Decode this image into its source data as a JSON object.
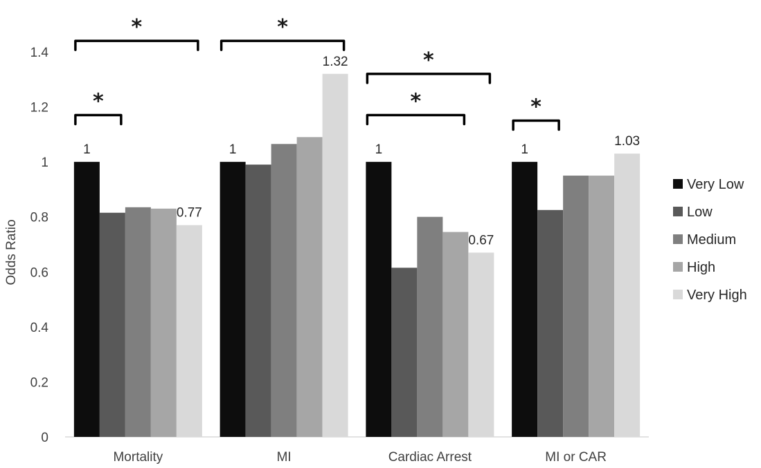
{
  "chart_data": {
    "type": "bar",
    "title": "",
    "xlabel": "",
    "ylabel": "Odds Ratio",
    "ylim": [
      0,
      1.4
    ],
    "yticks": [
      0,
      0.2,
      0.4,
      0.6,
      0.8,
      1,
      1.2,
      1.4
    ],
    "ytick_labels": [
      "0",
      "0.2",
      "0.4",
      "0.6",
      "0.8",
      "1",
      "1.2",
      "1.4"
    ],
    "grid": false,
    "legend_position": "right",
    "categories": [
      "Mortality",
      "MI",
      "Cardiac Arrest",
      "MI or CAR"
    ],
    "series": [
      {
        "name": "Very Low",
        "color": "#0d0d0d",
        "values": [
          1.0,
          1.0,
          1.0,
          1.0
        ]
      },
      {
        "name": "Low",
        "color": "#595959",
        "values": [
          0.815,
          0.99,
          0.615,
          0.825
        ]
      },
      {
        "name": "Medium",
        "color": "#7f7f7f",
        "values": [
          0.835,
          1.065,
          0.8,
          0.95
        ]
      },
      {
        "name": "High",
        "color": "#a6a6a6",
        "values": [
          0.83,
          1.09,
          0.745,
          0.95
        ]
      },
      {
        "name": "Very High",
        "color": "#d9d9d9",
        "values": [
          0.77,
          1.32,
          0.67,
          1.03
        ]
      }
    ],
    "data_labels": [
      {
        "category": 0,
        "series": 0,
        "text": "1"
      },
      {
        "category": 0,
        "series": 4,
        "text": "0.77"
      },
      {
        "category": 1,
        "series": 0,
        "text": "1"
      },
      {
        "category": 1,
        "series": 4,
        "text": "1.32"
      },
      {
        "category": 2,
        "series": 0,
        "text": "1"
      },
      {
        "category": 2,
        "series": 4,
        "text": "0.67"
      },
      {
        "category": 3,
        "series": 0,
        "text": "1"
      },
      {
        "category": 3,
        "series": 4,
        "text": "1.03"
      }
    ],
    "annotations": [
      {
        "category": 0,
        "from_series": 0,
        "to_series": 4,
        "level": 1.44,
        "text": "*"
      },
      {
        "category": 0,
        "from_series": 0,
        "to_series": 1,
        "level": 1.17,
        "text": "*"
      },
      {
        "category": 1,
        "from_series": 0,
        "to_series": 4,
        "level": 1.44,
        "text": "*"
      },
      {
        "category": 2,
        "from_series": 0,
        "to_series": 4,
        "level": 1.32,
        "text": "*"
      },
      {
        "category": 2,
        "from_series": 0,
        "to_series": 3,
        "level": 1.17,
        "text": "*"
      },
      {
        "category": 3,
        "from_series": 0,
        "to_series": 1,
        "level": 1.15,
        "text": "*"
      }
    ]
  }
}
